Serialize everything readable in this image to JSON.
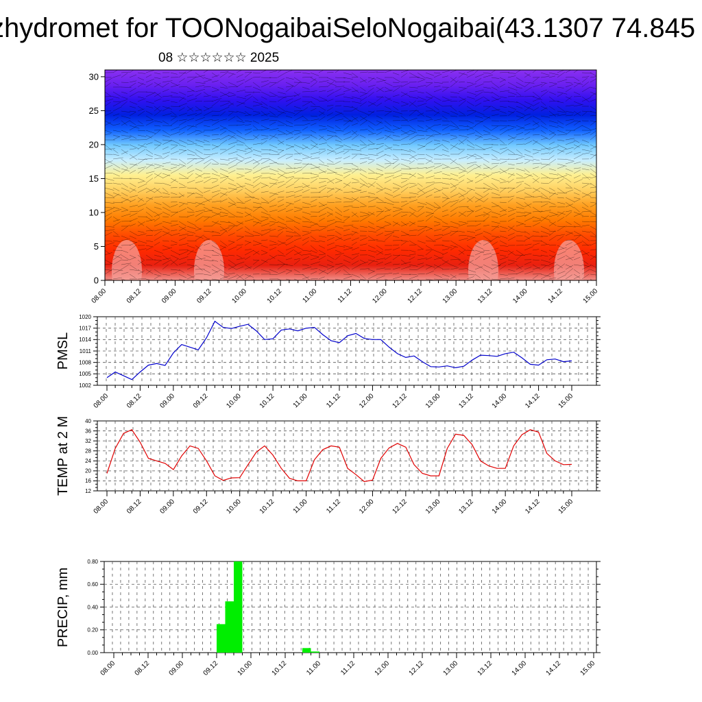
{
  "title": "zhydromet for TOONogaibaiSeloNogaibai(43.1307 74.845",
  "subtitle": "08 ☆☆☆☆☆☆ 2025",
  "colors": {
    "pmsl_line": "#0000cc",
    "temp_line": "#e00000",
    "precip_bar": "#00ee00",
    "grid": "#555555"
  },
  "chart_data": [
    {
      "type": "heatmap",
      "ytick_labels": [
        "0",
        "5",
        "10",
        "15",
        "20",
        "25",
        "30"
      ],
      "yticks": [
        0,
        5,
        10,
        15,
        20,
        25,
        30
      ],
      "ylim": [
        0,
        31
      ],
      "xtick_labels": [
        "08.00",
        "08.12",
        "09.00",
        "09.12",
        "10.00",
        "10.12",
        "11.00",
        "11.12",
        "12.00",
        "12.12",
        "13.00",
        "13.12",
        "14.00",
        "14.12",
        "15.00"
      ],
      "color_bands": [
        "#f0908a",
        "#e82010",
        "#ff2a00",
        "#ff4a00",
        "#ff7a00",
        "#ffa020",
        "#ffd060",
        "#fff090",
        "#c8eeff",
        "#70c8ff",
        "#1060ff",
        "#0020e0",
        "#3010f0",
        "#6a20f0",
        "#8a30f0"
      ],
      "grid": false
    },
    {
      "type": "line",
      "ylabel": "PMSL",
      "ylim": [
        1002,
        1020
      ],
      "yticks": [
        1002,
        1005,
        1008,
        1011,
        1014,
        1017,
        1020
      ],
      "ytick_labels": [
        "1002",
        "1005",
        "1008",
        "1011",
        "1014",
        "1017",
        "1020"
      ],
      "xtick_labels": [
        "08.00",
        "08.12",
        "09.00",
        "09.12",
        "10.00",
        "10.12",
        "11.00",
        "11.12",
        "12.00",
        "12.12",
        "13.00",
        "13.12",
        "14.00",
        "14.12",
        "15.00"
      ],
      "step_hours": 3,
      "values": [
        1004,
        1005.5,
        1004.5,
        1003.5,
        1005.5,
        1007.3,
        1007.7,
        1007.2,
        1010.5,
        1012.7,
        1012,
        1011.3,
        1014.5,
        1018.8,
        1017.2,
        1016.9,
        1017.5,
        1018,
        1016.3,
        1014,
        1014.2,
        1016.5,
        1016.8,
        1016.3,
        1017,
        1017.2,
        1015.3,
        1013.7,
        1013.2,
        1015,
        1015.6,
        1014.3,
        1014,
        1014,
        1012,
        1010.3,
        1009.3,
        1009.7,
        1008.2,
        1006.9,
        1006.8,
        1007.1,
        1006.6,
        1007,
        1008.6,
        1009.9,
        1009.8,
        1009.6,
        1010.3,
        1010.7,
        1009.2,
        1007.5,
        1007.3,
        1008.7,
        1008.9,
        1008.2,
        1008.4
      ],
      "grid": true
    },
    {
      "type": "line",
      "ylabel": "TEMP at 2 M",
      "ylim": [
        12,
        40
      ],
      "yticks": [
        12,
        16,
        20,
        24,
        28,
        32,
        36,
        40
      ],
      "ytick_labels": [
        "12",
        "16",
        "20",
        "24",
        "28",
        "32",
        "36",
        "40"
      ],
      "xtick_labels": [
        "08.00",
        "08.12",
        "09.00",
        "09.12",
        "10.00",
        "10.12",
        "11.00",
        "11.12",
        "12.00",
        "12.12",
        "13.00",
        "13.12",
        "14.00",
        "14.12",
        "15.00"
      ],
      "step_hours": 3,
      "values": [
        19,
        29,
        35,
        36.5,
        31.5,
        25,
        24,
        23,
        20.5,
        26,
        30,
        29,
        24,
        18,
        16.2,
        17.2,
        17.3,
        22.5,
        27.5,
        30,
        26.3,
        21,
        17,
        16,
        16,
        24.5,
        28.5,
        30,
        29.5,
        21,
        18.5,
        15.7,
        16.3,
        25,
        29.2,
        31,
        29.5,
        22.5,
        19,
        18,
        18,
        29,
        34.7,
        34.2,
        30.5,
        24,
        22,
        21,
        21,
        30,
        34.5,
        36.5,
        35.5,
        27,
        24,
        22.5,
        22.6
      ],
      "grid": true
    },
    {
      "type": "bar",
      "ylabel": "PRECIP, mm",
      "ylim": [
        0,
        0.8
      ],
      "yticks": [
        0,
        0.2,
        0.4,
        0.6,
        0.8
      ],
      "ytick_labels": [
        "0.00",
        "0.20",
        "0.40",
        "0.60",
        "0.80"
      ],
      "xtick_labels": [
        "08.00",
        "08.12",
        "09.00",
        "09.12",
        "10.00",
        "10.12",
        "11.00",
        "11.12",
        "12.00",
        "12.12",
        "13.00",
        "13.12",
        "14.00",
        "14.12",
        "15.00"
      ],
      "bars": [
        {
          "x_hours": 36,
          "value": 0.25
        },
        {
          "x_hours": 39,
          "value": 0.45
        },
        {
          "x_hours": 42,
          "value": 0.8
        },
        {
          "x_hours": 66,
          "value": 0.04
        },
        {
          "x_hours": 69,
          "value": 0.01
        }
      ],
      "grid": true
    }
  ]
}
